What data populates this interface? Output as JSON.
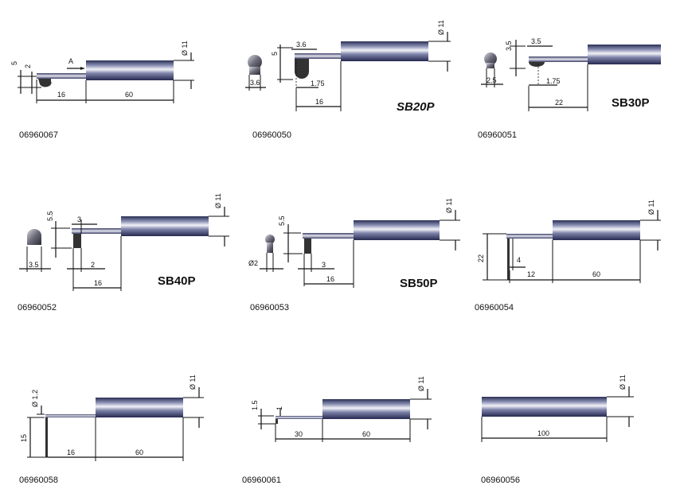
{
  "products": [
    {
      "code": "06960067",
      "dims": {
        "d": "Ø 11",
        "a": "5",
        "b": "2",
        "arrow": "A",
        "l1": "16",
        "l2": "60"
      }
    },
    {
      "code": "06960050",
      "name": "SB20P",
      "dims": {
        "d": "Ø 11",
        "a": "3.6",
        "b": "5",
        "c": "3.6",
        "e": "1.75",
        "l1": "16"
      }
    },
    {
      "code": "06960051",
      "name": "SB30P",
      "dims": {
        "d": "Ø 11",
        "a": "3.5",
        "b": "3.5",
        "c": "2.5",
        "e": "1.75",
        "l1": "22"
      }
    },
    {
      "code": "06960052",
      "name": "SB40P",
      "dims": {
        "d": "Ø 11",
        "a": "5.5",
        "b": "3",
        "c": "3.5",
        "e": "2",
        "l1": "16"
      }
    },
    {
      "code": "06960053",
      "name": "SB50P",
      "dims": {
        "d": "Ø 11",
        "a": "5.5",
        "c": "Ø2",
        "e": "3",
        "l1": "16"
      }
    },
    {
      "code": "06960054",
      "dims": {
        "d": "Ø 11",
        "a": "22",
        "e": "4",
        "l1": "12",
        "l2": "60"
      }
    },
    {
      "code": "06960058",
      "dims": {
        "d": "Ø 11",
        "a": "Ø 1.2",
        "b": "15",
        "l1": "16",
        "l2": "60"
      }
    },
    {
      "code": "06960061",
      "dims": {
        "d": "Ø 11",
        "a": "1.5",
        "b": "1",
        "l1": "30",
        "l2": "60"
      }
    },
    {
      "code": "06960056",
      "dims": {
        "d": "Ø 11",
        "l1": "100"
      }
    }
  ]
}
